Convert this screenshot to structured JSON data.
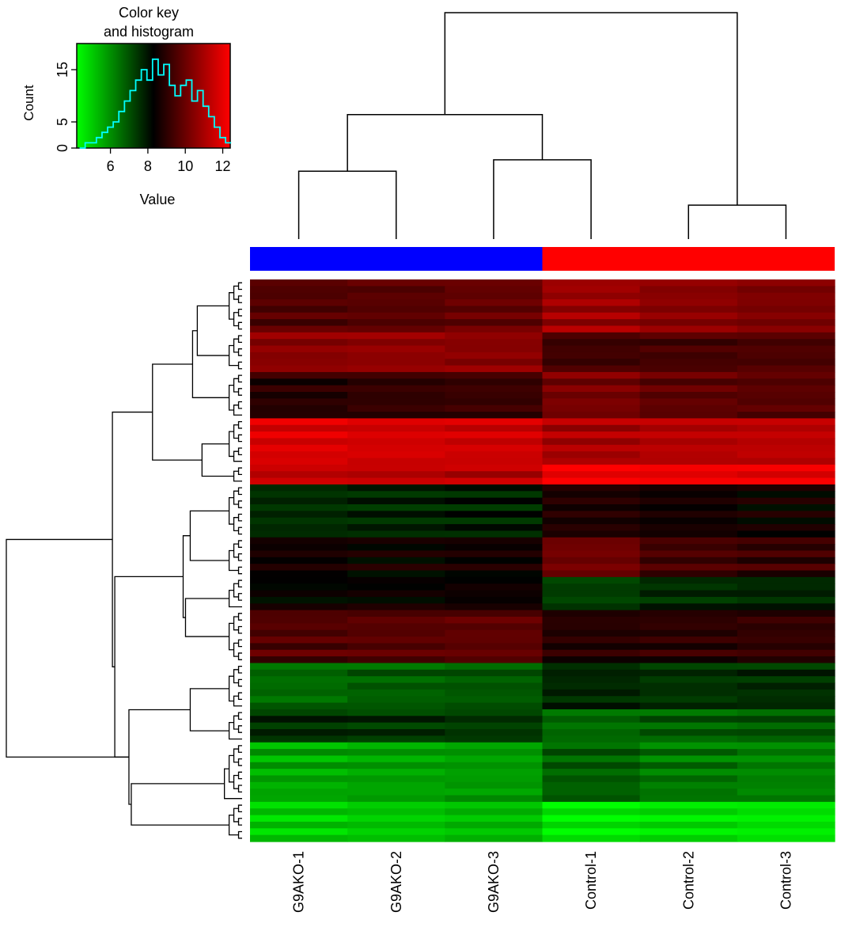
{
  "chart_data": {
    "type": "heatmap",
    "samples": [
      "G9AKO-1",
      "G9AKO-2",
      "G9AKO-3",
      "Control-1",
      "Control-2",
      "Control-3"
    ],
    "sample_groups": [
      {
        "members": [
          "G9AKO-1",
          "G9AKO-2",
          "G9AKO-3"
        ],
        "color": "#0000ff"
      },
      {
        "members": [
          "Control-1",
          "Control-2",
          "Control-3"
        ],
        "color": "#ff0000"
      }
    ],
    "color_scale": {
      "low": "#00ff00",
      "mid": "#000000",
      "high": "#ff0000",
      "min": 4.2,
      "max": 12.4
    },
    "row_clusters": [
      {
        "rows": 8,
        "values": [
          9.6,
          9.7,
          9.9,
          10.8,
          10.5,
          10.3
        ]
      },
      {
        "rows": 6,
        "values": [
          10.5,
          10.6,
          10.5,
          9.3,
          9.4,
          9.5
        ]
      },
      {
        "rows": 7,
        "values": [
          8.9,
          9.1,
          9.2,
          10.2,
          9.8,
          9.7
        ]
      },
      {
        "rows": 7,
        "values": [
          11.8,
          11.7,
          11.6,
          11.0,
          11.2,
          11.3
        ]
      },
      {
        "rows": 3,
        "values": [
          11.4,
          11.3,
          11.2,
          12.3,
          12.1,
          12.0
        ]
      },
      {
        "rows": 8,
        "values": [
          7.6,
          7.7,
          7.8,
          8.8,
          8.6,
          8.5
        ]
      },
      {
        "rows": 6,
        "values": [
          8.6,
          8.5,
          8.6,
          10.1,
          9.4,
          9.2
        ]
      },
      {
        "rows": 5,
        "values": [
          8.3,
          8.4,
          8.5,
          7.3,
          7.6,
          7.7
        ]
      },
      {
        "rows": 8,
        "values": [
          9.6,
          9.7,
          9.8,
          8.9,
          9.0,
          9.1
        ]
      },
      {
        "rows": 7,
        "values": [
          6.6,
          6.8,
          6.9,
          7.7,
          7.5,
          7.6
        ]
      },
      {
        "rows": 5,
        "values": [
          7.6,
          7.5,
          7.4,
          6.6,
          6.8,
          6.9
        ]
      },
      {
        "rows": 9,
        "values": [
          5.6,
          5.7,
          5.8,
          6.8,
          6.4,
          6.2
        ]
      },
      {
        "rows": 6,
        "values": [
          5.0,
          5.1,
          5.3,
          4.4,
          4.7,
          4.6
        ]
      }
    ],
    "title": "",
    "legend": {
      "title": "Color key\nand histogram",
      "ylabel": "Count",
      "xlabel": "Value",
      "xticks": [
        6,
        8,
        10,
        12
      ],
      "yticks": [
        0,
        5,
        15
      ],
      "xlim": [
        4.2,
        12.4
      ],
      "ylim": [
        0,
        20
      ],
      "histogram_color": "#00ffff",
      "histogram_x": [
        4.5,
        4.8,
        5.1,
        5.4,
        5.7,
        6.0,
        6.3,
        6.6,
        6.9,
        7.2,
        7.5,
        7.8,
        8.1,
        8.4,
        8.7,
        9.0,
        9.3,
        9.6,
        9.9,
        10.2,
        10.5,
        10.8,
        11.1,
        11.4,
        11.7,
        12.0,
        12.3
      ],
      "histogram_y": [
        0,
        1,
        1,
        2,
        3,
        4,
        5,
        7,
        9,
        11,
        13,
        15,
        13,
        17,
        14,
        16,
        12,
        10,
        12,
        13,
        9,
        11,
        8,
        6,
        4,
        2,
        1
      ]
    },
    "col_dendrogram": [
      {
        "x1": 0,
        "x2": 1,
        "h": 0.3
      },
      {
        "x1": 2,
        "x2": 3,
        "h": 0.35
      },
      {
        "x1": 4,
        "x2": 5,
        "h": 0.15
      },
      {
        "x1": 6,
        "x2": 7,
        "h": 0.55
      },
      {
        "x1": 8,
        "x2": 9,
        "h": 1.0
      }
    ]
  }
}
